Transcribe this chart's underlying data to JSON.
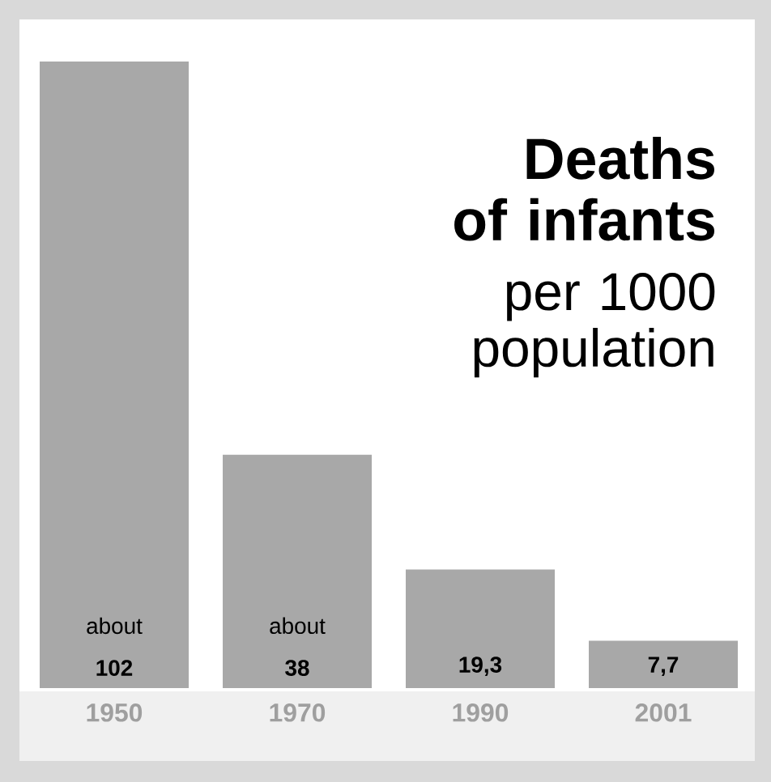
{
  "chart_data": {
    "type": "bar",
    "title": "Deaths of infants",
    "subtitle": "per 1000 population",
    "categories": [
      "1950",
      "1970",
      "1990",
      "2001"
    ],
    "values": [
      102,
      38,
      19.3,
      7.7
    ],
    "value_labels": [
      "about **102**",
      "about **38**",
      "**19,3**",
      "**7,7**"
    ],
    "color": "#a8a8a8"
  }
}
